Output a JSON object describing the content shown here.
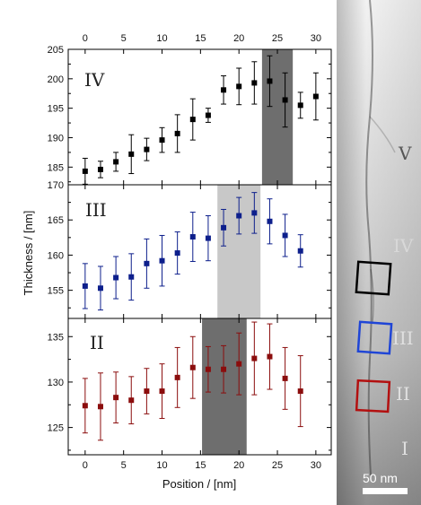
{
  "chart_data": [
    {
      "type": "scatter",
      "panel_label": "IV",
      "x": [
        0,
        2,
        4,
        6,
        8,
        10,
        12,
        14,
        16,
        18,
        20,
        22,
        24,
        26,
        28,
        30
      ],
      "y": [
        184.3,
        184.6,
        185.9,
        187.2,
        188.0,
        189.6,
        190.7,
        193.1,
        193.8,
        198.1,
        198.7,
        199.3,
        199.6,
        196.4,
        195.5,
        197.0
      ],
      "err": [
        2.2,
        1.4,
        1.6,
        3.3,
        1.9,
        2.1,
        3.2,
        3.5,
        1.2,
        2.4,
        3.1,
        3.6,
        4.3,
        4.6,
        2.2,
        4.0
      ],
      "ylim": [
        182,
        205
      ],
      "yticks": [
        185,
        190,
        195,
        200,
        205
      ],
      "highlight": [
        23,
        27
      ],
      "color": "#000000",
      "highlight_color": "#6e6e6e"
    },
    {
      "type": "scatter",
      "panel_label": "III",
      "x": [
        0,
        2,
        4,
        6,
        8,
        10,
        12,
        14,
        16,
        18,
        20,
        22,
        24,
        26,
        28
      ],
      "y": [
        155.6,
        155.3,
        156.8,
        156.9,
        158.8,
        159.2,
        160.3,
        162.6,
        162.4,
        163.9,
        165.6,
        166.0,
        164.8,
        162.8,
        160.6
      ],
      "err": [
        3.2,
        3.1,
        3.0,
        3.3,
        3.5,
        3.6,
        3.0,
        3.5,
        3.2,
        2.6,
        2.6,
        2.9,
        3.2,
        3.0,
        2.3
      ],
      "ylim": [
        151,
        170
      ],
      "yticks": [
        155,
        160,
        165,
        170
      ],
      "highlight": [
        17.2,
        22.8
      ],
      "color": "#0d1f8c",
      "highlight_color": "#c8c8c8"
    },
    {
      "type": "scatter",
      "panel_label": "II",
      "x": [
        0,
        2,
        4,
        6,
        8,
        10,
        12,
        14,
        16,
        18,
        20,
        22,
        24,
        26,
        28
      ],
      "y": [
        127.4,
        127.3,
        128.3,
        128.0,
        129.0,
        129.0,
        130.5,
        131.6,
        131.4,
        131.4,
        132.0,
        132.6,
        132.8,
        130.4,
        129.0
      ],
      "err": [
        3.0,
        3.7,
        2.8,
        2.6,
        2.5,
        3.0,
        3.3,
        3.4,
        2.5,
        2.6,
        3.4,
        4.0,
        3.6,
        3.4,
        3.9
      ],
      "ylim": [
        122,
        137
      ],
      "yticks": [
        125,
        130,
        135
      ],
      "highlight": [
        15.2,
        21.0
      ],
      "color": "#8b0d0d",
      "highlight_color": "#6e6e6e"
    }
  ],
  "axes": {
    "xlabel": "Position / [nm]",
    "ylabel": "Thickness / [nm]",
    "xlim": [
      -2.2,
      32
    ],
    "xticks": [
      0,
      5,
      10,
      15,
      20,
      25,
      30
    ]
  },
  "image_panel": {
    "region_labels": [
      "V",
      "IV",
      "III",
      "II",
      "I"
    ],
    "boxes": [
      {
        "label": "IV",
        "color": "#000000"
      },
      {
        "label": "III",
        "color": "#1f45d6"
      },
      {
        "label": "II",
        "color": "#b31010"
      }
    ],
    "scale_bar": "50 nm"
  }
}
